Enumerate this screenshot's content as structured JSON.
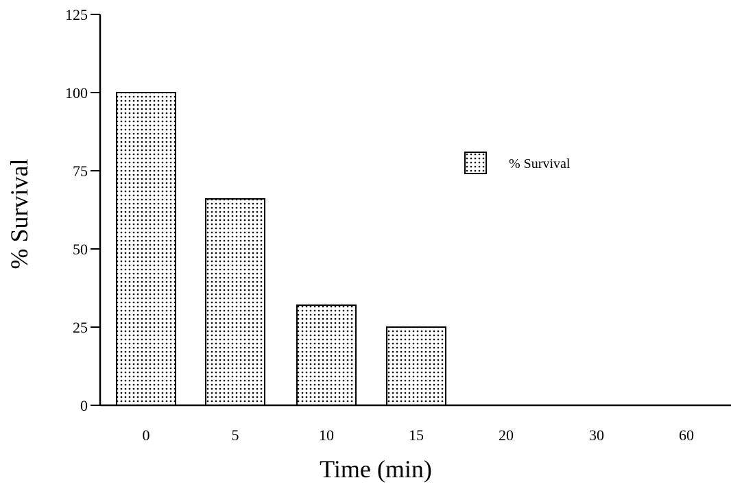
{
  "chart_data": {
    "type": "bar",
    "categories": [
      "0",
      "5",
      "10",
      "15",
      "20",
      "30",
      "60"
    ],
    "series": [
      {
        "name": "% Survival",
        "values": [
          100,
          66,
          32,
          25,
          0,
          0,
          0
        ]
      }
    ],
    "xlabel": "Time (min)",
    "ylabel": "% Survival",
    "ylim": [
      0,
      125
    ],
    "yticks": [
      0,
      25,
      50,
      75,
      100,
      125
    ],
    "grid": false,
    "legend": {
      "position": "right",
      "entries": [
        "% Survival"
      ]
    },
    "bar_fill": "dotted",
    "colors": {
      "bar_stroke": "#000000",
      "bar_fill_dots": "#000000",
      "background": "#ffffff"
    }
  }
}
